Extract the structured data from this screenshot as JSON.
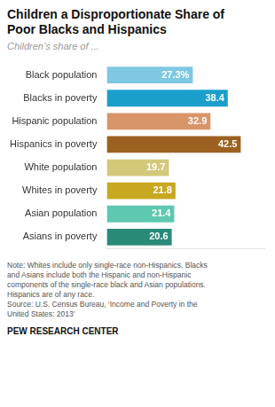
{
  "chart_data": {
    "type": "bar",
    "orientation": "horizontal",
    "title": "Children a Disproportionate Share of\nPoor Blacks and Hispanics",
    "subtitle": "Children’s share of ...",
    "categories": [
      "Black population",
      "Blacks in poverty",
      "Hispanic population",
      "Hispanics in poverty",
      "White population",
      "Whites in poverty",
      "Asian population",
      "Asians in poverty"
    ],
    "values": [
      27.3,
      38.4,
      32.9,
      42.5,
      19.7,
      21.8,
      21.4,
      20.6
    ],
    "value_labels": [
      "27.3%",
      "38.4",
      "32.9",
      "42.5",
      "19.7",
      "21.8",
      "21.4",
      "20.6"
    ],
    "data_labels": true,
    "colors": [
      "#7ec8e3",
      "#1a9fca",
      "#d9956a",
      "#9c6120",
      "#d4c87a",
      "#c8a820",
      "#5ec8b0",
      "#2a8a78"
    ],
    "xlim": [
      0,
      50
    ],
    "xticks": [],
    "tick_labels": "y",
    "grid": false,
    "note": "Note: Whites include only single-race non-Hispanics. Blacks\nand Asians include both the Hispanic and non-Hispanic\ncomponents of the single-race black and Asian populations.\nHispanics are of any race.\nSource: U.S. Census Bureau, ‘Income and Poverty in the\nUnited States: 2013’",
    "source": "PEW RESEARCH CENTER"
  }
}
